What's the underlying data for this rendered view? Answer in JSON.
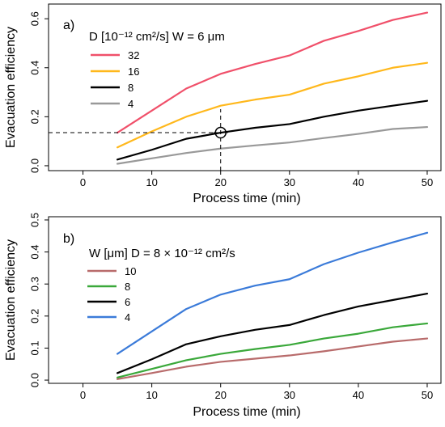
{
  "chart_data": [
    {
      "type": "line",
      "panel_label": "a)",
      "xlabel": "Process time (min)",
      "ylabel": "Evacuation efficiency",
      "xlim": [
        -5,
        52
      ],
      "ylim": [
        -0.02,
        0.66
      ],
      "x_ticks": [
        0,
        10,
        20,
        30,
        40,
        50
      ],
      "x_tick_labels": [
        "0",
        "10",
        "20",
        "30",
        "40",
        "50"
      ],
      "y_ticks": [
        0,
        0.2,
        0.4,
        0.6
      ],
      "y_tick_labels": [
        "0.0",
        "0.2",
        "0.4",
        "0.6"
      ],
      "legend_title": "D [10⁻¹² cm²/s]   W = 6 μm",
      "legend_position": "top-left",
      "x": [
        5,
        10,
        15,
        20,
        25,
        30,
        35,
        40,
        45,
        50
      ],
      "series": [
        {
          "name": "32",
          "color": "#f0506a",
          "values": [
            0.135,
            0.225,
            0.315,
            0.375,
            0.415,
            0.45,
            0.51,
            0.55,
            0.595,
            0.625
          ]
        },
        {
          "name": "16",
          "color": "#ffb81c",
          "values": [
            0.075,
            0.14,
            0.2,
            0.245,
            0.27,
            0.29,
            0.335,
            0.365,
            0.4,
            0.42
          ]
        },
        {
          "name": "8",
          "color": "#000000",
          "values": [
            0.025,
            0.065,
            0.11,
            0.135,
            0.155,
            0.17,
            0.2,
            0.225,
            0.245,
            0.265
          ]
        },
        {
          "name": "4",
          "color": "#999999",
          "values": [
            0.008,
            0.03,
            0.052,
            0.07,
            0.083,
            0.095,
            0.113,
            0.13,
            0.15,
            0.158
          ]
        }
      ],
      "reference_point": {
        "x": 20,
        "y": 0.135
      },
      "grid": false
    },
    {
      "type": "line",
      "panel_label": "b)",
      "xlabel": "Process time (min)",
      "ylabel": "Evacuation efficiency",
      "xlim": [
        -5,
        52
      ],
      "ylim": [
        -0.01,
        0.51
      ],
      "x_ticks": [
        0,
        10,
        20,
        30,
        40,
        50
      ],
      "x_tick_labels": [
        "0",
        "10",
        "20",
        "30",
        "40",
        "50"
      ],
      "y_ticks": [
        0,
        0.1,
        0.2,
        0.3,
        0.4,
        0.5
      ],
      "y_tick_labels": [
        "0.0",
        "0.1",
        "0.2",
        "0.3",
        "0.4",
        "0.5"
      ],
      "legend_title": "W [μm]     D = 8 × 10⁻¹² cm²/s",
      "legend_position": "top-left",
      "x": [
        5,
        10,
        15,
        20,
        25,
        30,
        35,
        40,
        45,
        50
      ],
      "series": [
        {
          "name": "10",
          "color": "#b86b6b",
          "values": [
            0.003,
            0.022,
            0.042,
            0.057,
            0.067,
            0.077,
            0.09,
            0.105,
            0.12,
            0.13
          ]
        },
        {
          "name": "8",
          "color": "#3aa83a",
          "values": [
            0.008,
            0.035,
            0.062,
            0.082,
            0.097,
            0.11,
            0.13,
            0.145,
            0.165,
            0.177
          ]
        },
        {
          "name": "6",
          "color": "#000000",
          "values": [
            0.022,
            0.065,
            0.112,
            0.137,
            0.157,
            0.172,
            0.203,
            0.23,
            0.25,
            0.27
          ]
        },
        {
          "name": "4",
          "color": "#3b7bd9",
          "values": [
            0.082,
            0.152,
            0.222,
            0.267,
            0.295,
            0.315,
            0.362,
            0.398,
            0.43,
            0.46
          ]
        }
      ],
      "grid": false
    }
  ]
}
